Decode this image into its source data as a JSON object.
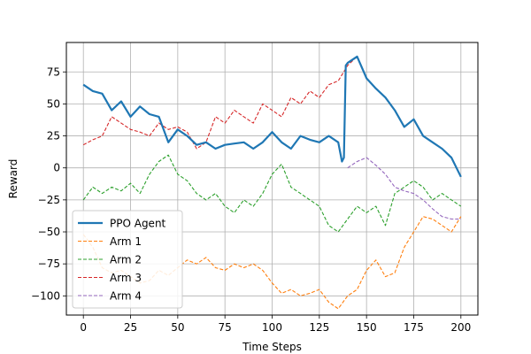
{
  "chart_data": {
    "type": "line",
    "title": "",
    "xlabel": "Time Steps",
    "ylabel": "Reward",
    "xlim": [
      -9,
      209
    ],
    "ylim": [
      -115,
      98
    ],
    "xticks": [
      0,
      25,
      50,
      75,
      100,
      125,
      150,
      175,
      200
    ],
    "yticks": [
      -100,
      -75,
      -50,
      -25,
      0,
      25,
      50,
      75
    ],
    "grid": true,
    "legend_position": "lower-left",
    "colors": {
      "agent": "#1f77b4",
      "agent_overlay": "#4c72b0",
      "arm1": "#ff7f0e",
      "arm2": "#2ca02c",
      "arm3": "#d62728",
      "arm4": "#9467bd"
    },
    "series": [
      {
        "name": "PPO Agent",
        "style": "solid",
        "x": [
          0,
          5,
          10,
          15,
          20,
          25,
          30,
          35,
          40,
          45,
          50,
          55,
          60,
          65,
          70,
          75,
          80,
          85,
          90,
          95,
          100,
          105,
          110,
          115,
          120,
          125,
          130,
          135,
          137,
          138,
          139,
          140,
          145,
          150,
          155,
          160,
          165,
          170,
          175,
          180,
          185,
          190,
          195,
          200
        ],
        "values": [
          65,
          60,
          58,
          45,
          52,
          40,
          48,
          42,
          40,
          20,
          30,
          25,
          18,
          20,
          15,
          18,
          19,
          20,
          15,
          20,
          28,
          20,
          15,
          25,
          22,
          20,
          25,
          20,
          5,
          8,
          80,
          82,
          87,
          70,
          62,
          55,
          45,
          32,
          38,
          25,
          20,
          15,
          8,
          -7
        ]
      },
      {
        "name": "Arm 1",
        "style": "dashed",
        "x": [
          0,
          5,
          10,
          15,
          20,
          25,
          30,
          35,
          40,
          45,
          50,
          55,
          60,
          65,
          70,
          75,
          80,
          85,
          90,
          95,
          100,
          105,
          110,
          115,
          120,
          125,
          130,
          135,
          140,
          145,
          150,
          155,
          160,
          165,
          170,
          175,
          180,
          185,
          190,
          195,
          200
        ],
        "values": [
          -52,
          -62,
          -78,
          -82,
          -80,
          -85,
          -90,
          -88,
          -80,
          -84,
          -78,
          -72,
          -75,
          -70,
          -78,
          -80,
          -75,
          -78,
          -75,
          -80,
          -90,
          -98,
          -95,
          -100,
          -98,
          -95,
          -105,
          -110,
          -100,
          -95,
          -80,
          -72,
          -85,
          -82,
          -62,
          -50,
          -38,
          -40,
          -45,
          -50,
          -38
        ]
      },
      {
        "name": "Arm 2",
        "style": "dashed",
        "x": [
          0,
          5,
          10,
          15,
          20,
          25,
          30,
          35,
          40,
          45,
          50,
          55,
          60,
          65,
          70,
          75,
          80,
          85,
          90,
          95,
          100,
          105,
          110,
          115,
          120,
          125,
          130,
          135,
          140,
          145,
          150,
          155,
          160,
          165,
          170,
          175,
          180,
          185,
          190,
          195,
          200
        ],
        "values": [
          -25,
          -15,
          -20,
          -15,
          -18,
          -12,
          -20,
          -5,
          5,
          10,
          -5,
          -10,
          -20,
          -25,
          -20,
          -30,
          -35,
          -25,
          -30,
          -20,
          -5,
          3,
          -15,
          -20,
          -25,
          -30,
          -45,
          -50,
          -40,
          -30,
          -35,
          -30,
          -45,
          -20,
          -15,
          -10,
          -15,
          -25,
          -20,
          -25,
          -30
        ]
      },
      {
        "name": "Arm 3",
        "style": "dashed",
        "x": [
          0,
          5,
          10,
          15,
          20,
          25,
          30,
          35,
          40,
          45,
          50,
          55,
          60,
          65,
          70,
          75,
          80,
          85,
          90,
          95,
          100,
          105,
          110,
          115,
          120,
          125,
          130,
          135,
          140,
          145,
          150,
          155,
          160,
          165,
          170,
          175,
          180,
          185,
          190,
          195,
          200
        ],
        "values": [
          18,
          22,
          25,
          40,
          35,
          30,
          28,
          25,
          35,
          30,
          32,
          28,
          15,
          20,
          40,
          35,
          45,
          40,
          35,
          50,
          45,
          40,
          55,
          50,
          60,
          55,
          65,
          68,
          80,
          87,
          70,
          62,
          55,
          45,
          32,
          38,
          25,
          20,
          15,
          8,
          -7
        ]
      },
      {
        "name": "Arm 4",
        "style": "dashed",
        "x": [
          140,
          145,
          150,
          155,
          160,
          165,
          170,
          175,
          180,
          185,
          190,
          195,
          200
        ],
        "values": [
          0,
          5,
          8,
          2,
          -5,
          -15,
          -18,
          -20,
          -25,
          -32,
          -38,
          -40,
          -40
        ]
      }
    ]
  }
}
